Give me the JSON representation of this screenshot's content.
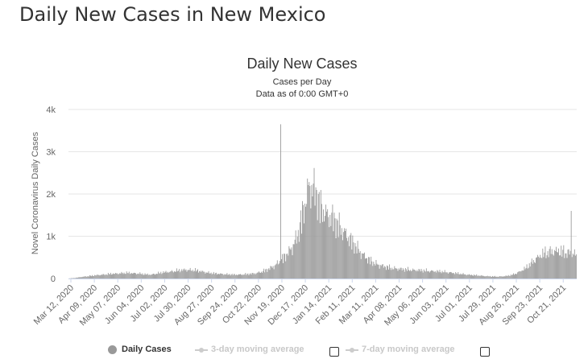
{
  "page": {
    "title": "Daily New Cases in New Mexico"
  },
  "colors": {
    "bar": "#999999",
    "grid": "#e6e6e6",
    "axis": "#ccd6eb",
    "inactive": "#cccccc"
  },
  "chart_data": {
    "type": "bar",
    "title": "Daily New Cases",
    "subtitle": "Cases per Day",
    "subtitle2": "Data as of 0:00 GMT+0",
    "ylabel": "Novel Coronavirus Daily Cases",
    "xlabel": "",
    "ylim": [
      0,
      4000
    ],
    "yticks": [
      0,
      1000,
      2000,
      3000,
      4000
    ],
    "ytick_labels": [
      "0",
      "1k",
      "2k",
      "3k",
      "4k"
    ],
    "x_start": "Mar 12, 2020",
    "x_end": "Nov 08, 2021",
    "xtick_labels": [
      "Mar 12, 2020",
      "Apr 09, 2020",
      "May 07, 2020",
      "Jun 04, 2020",
      "Jul 02, 2020",
      "Jul 30, 2020",
      "Aug 27, 2020",
      "Sep 24, 2020",
      "Oct 22, 2020",
      "Nov 19, 2020",
      "Dec 17, 2020",
      "Jan 14, 2021",
      "Feb 11, 2021",
      "Mar 11, 2021",
      "Apr 08, 2021",
      "May 06, 2021",
      "Jun 03, 2021",
      "Jul 01, 2021",
      "Jul 29, 2021",
      "Aug 26, 2021",
      "Sep 23, 2021",
      "Oct 21, 2021"
    ],
    "series": [
      {
        "name": "Daily Cases",
        "weekly_daily_average": [
          2,
          15,
          40,
          60,
          80,
          100,
          110,
          130,
          140,
          150,
          160,
          150,
          140,
          120,
          110,
          140,
          170,
          190,
          210,
          230,
          250,
          240,
          220,
          190,
          160,
          140,
          130,
          120,
          110,
          110,
          120,
          130,
          150,
          200,
          260,
          350,
          480,
          650,
          850,
          1200,
          1900,
          2600,
          2500,
          2000,
          1800,
          1700,
          1500,
          1300,
          1100,
          900,
          700,
          550,
          450,
          380,
          330,
          300,
          280,
          260,
          250,
          240,
          230,
          220,
          210,
          200,
          190,
          170,
          150,
          130,
          110,
          95,
          85,
          70,
          60,
          55,
          60,
          80,
          120,
          200,
          300,
          450,
          600,
          700,
          750,
          780,
          760,
          720,
          700,
          680,
          660,
          650,
          680,
          720,
          750,
          800,
          950,
          1100
        ]
      }
    ],
    "legend": [
      {
        "label": "Daily Cases",
        "active": true
      },
      {
        "label": "3-day moving average",
        "active": false
      },
      {
        "label": "7-day moving average",
        "active": false
      }
    ]
  }
}
